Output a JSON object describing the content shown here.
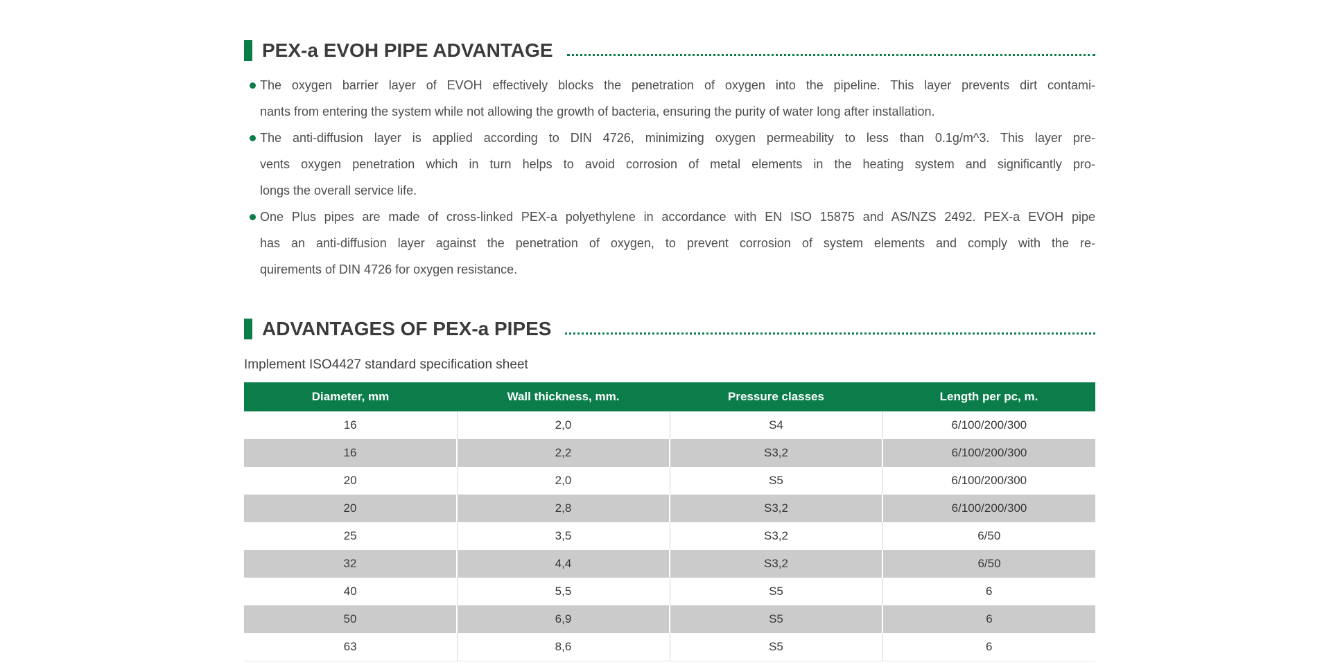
{
  "colors": {
    "accent_green": "#0a7d4b",
    "row_stripe_gray": "#cbcbcb",
    "heading_text": "#3b3b3b",
    "body_text": "#4d4d4d",
    "table_header_text": "#ffffff"
  },
  "sections": [
    {
      "title": "PEX-a EVOH PIPE ADVANTAGE",
      "bullets": [
        {
          "lines": [
            "The oxygen barrier layer of EVOH effectively blocks the penetration of oxygen into the pipeline. This layer prevents dirt contami-",
            "nants from entering the system while not allowing the growth of bacteria, ensuring the purity of water long after installation."
          ]
        },
        {
          "lines": [
            "The anti-diffusion layer is applied according to DIN 4726, minimizing oxygen permeability to less than 0.1g/m^3. This layer pre-",
            "vents oxygen penetration which in turn helps to avoid corrosion of metal elements in the heating system and significantly pro-",
            "longs the overall service life."
          ]
        },
        {
          "lines": [
            "One Plus pipes are made of cross-linked PEX-a polyethylene in accordance with EN ISO 15875 and AS/NZS 2492. PEX-a EVOH pipe",
            "has an anti-diffusion layer against the penetration of oxygen, to prevent corrosion of system elements and comply with the re-",
            "quirements of DIN 4726 for oxygen resistance."
          ]
        }
      ]
    },
    {
      "title": "ADVANTAGES OF PEX-a PIPES",
      "subtitle": "Implement ISO4427 standard specification sheet",
      "table": {
        "columns": [
          "Diameter, mm",
          "Wall thickness, mm.",
          "Pressure classes",
          "Length per pc, m."
        ],
        "rows": [
          [
            "16",
            "2,0",
            "S4",
            "6/100/200/300"
          ],
          [
            "16",
            "2,2",
            "S3,2",
            "6/100/200/300"
          ],
          [
            "20",
            "2,0",
            "S5",
            "6/100/200/300"
          ],
          [
            "20",
            "2,8",
            "S3,2",
            "6/100/200/300"
          ],
          [
            "25",
            "3,5",
            "S3,2",
            "6/50"
          ],
          [
            "32",
            "4,4",
            "S3,2",
            "6/50"
          ],
          [
            "40",
            "5,5",
            "S5",
            "6"
          ],
          [
            "50",
            "6,9",
            "S5",
            "6"
          ],
          [
            "63",
            "8,6",
            "S5",
            "6"
          ]
        ]
      }
    }
  ]
}
